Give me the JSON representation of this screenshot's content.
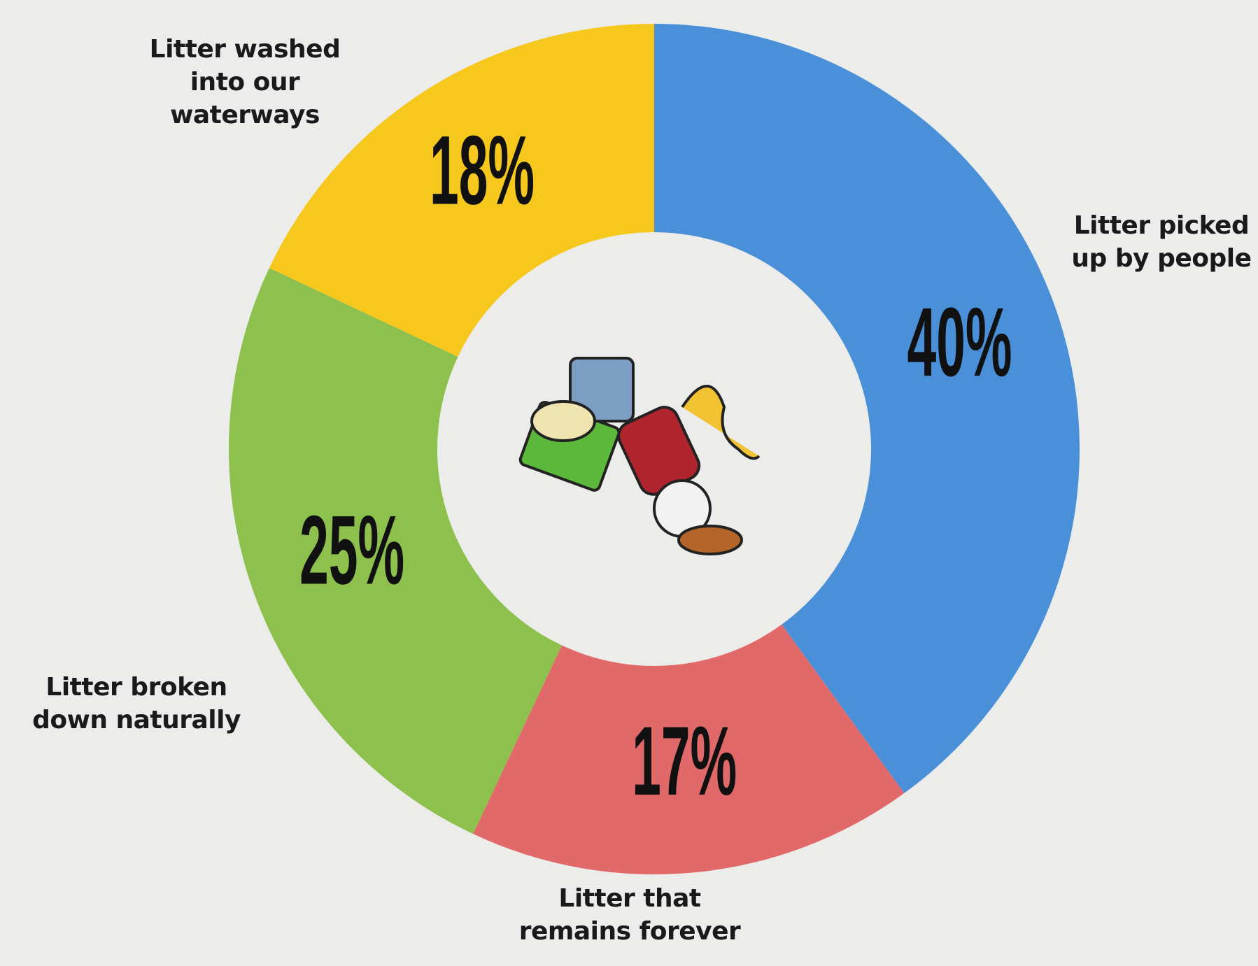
{
  "chart_data": {
    "type": "donut",
    "categories": [
      "Litter picked up by people",
      "Litter that remains forever",
      "Litter broken down naturally",
      "Litter washed into our waterways"
    ],
    "values": [
      40,
      17,
      25,
      18
    ],
    "value_labels": [
      "40%",
      "17%",
      "25%",
      "18%"
    ],
    "colors": [
      "#4a90d9",
      "#e2696a",
      "#8dc04c",
      "#f6c81e"
    ]
  }
}
